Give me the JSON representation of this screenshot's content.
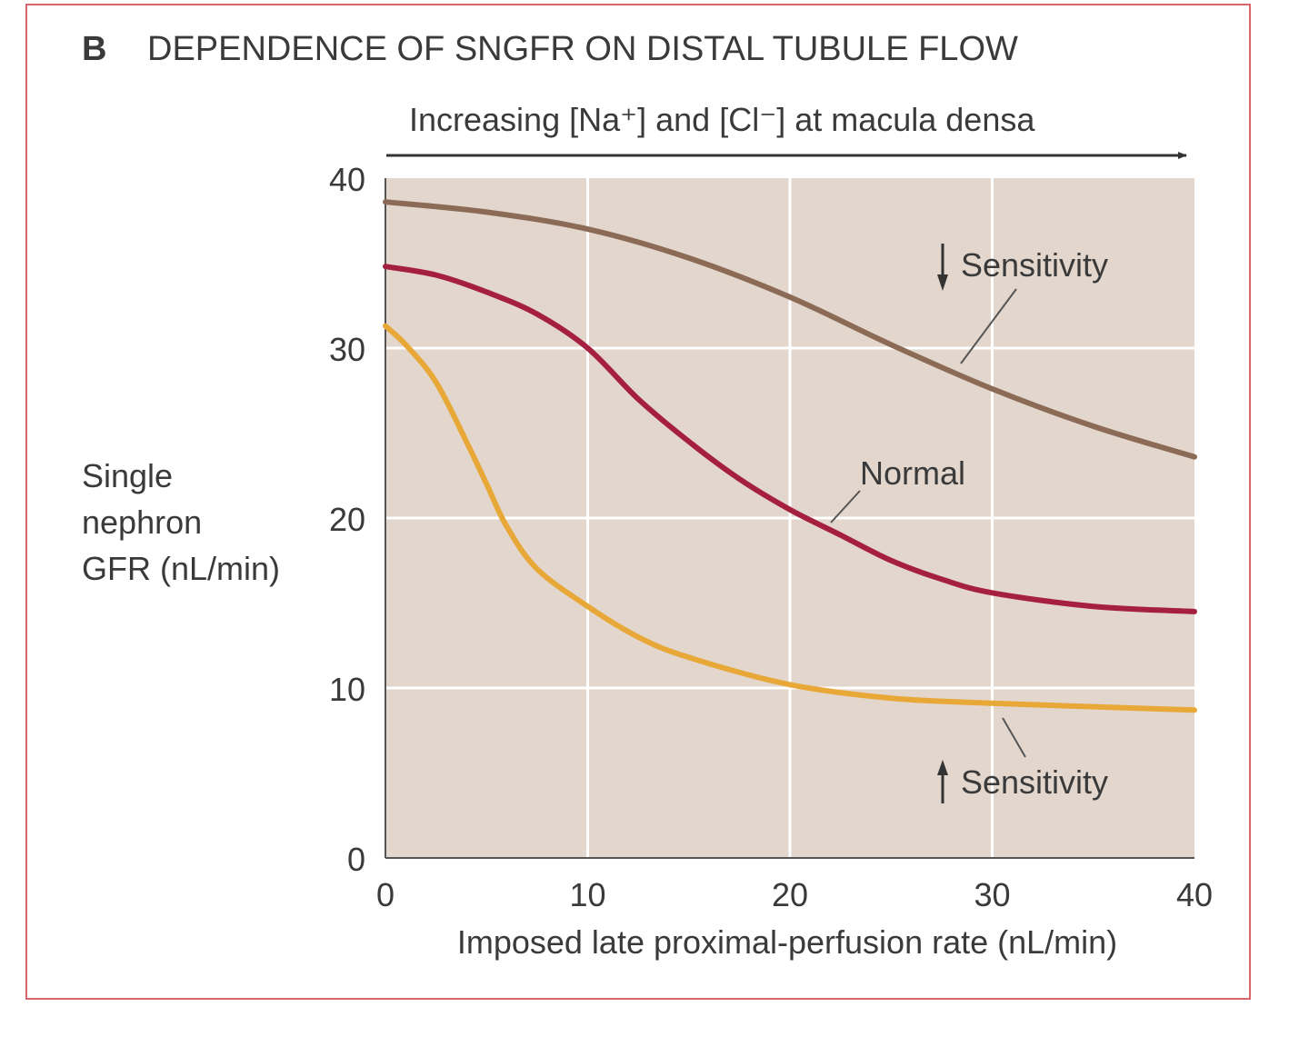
{
  "chart_data": {
    "type": "line",
    "panel_letter": "B",
    "title": "DEPENDENCE OF SNGFR ON DISTAL TUBULE FLOW",
    "top_annotation": "Increasing [Na⁺] and [Cl⁻] at macula densa",
    "xlabel": "Imposed late proximal-perfusion rate (nL/min)",
    "ylabel_lines": [
      "Single",
      "nephron",
      "GFR (nL/min)"
    ],
    "xlim": [
      0,
      40
    ],
    "ylim": [
      0,
      40
    ],
    "x_ticks": [
      0,
      10,
      20,
      30,
      40
    ],
    "y_ticks": [
      0,
      10,
      20,
      30,
      40
    ],
    "grid": true,
    "background_color": "#e2d6cd",
    "series": [
      {
        "name": "Sensitivity",
        "direction": "decreased",
        "color": "#8b6b55",
        "x": [
          0,
          5,
          10,
          15,
          20,
          25,
          30,
          35,
          40
        ],
        "y": [
          38.6,
          38.0,
          37.0,
          35.3,
          33.0,
          30.2,
          27.6,
          25.4,
          23.6
        ]
      },
      {
        "name": "Normal",
        "direction": "normal",
        "color": "#a5203f",
        "x": [
          0,
          2.5,
          5,
          7.5,
          10,
          12.5,
          15,
          17.5,
          20,
          22.5,
          25,
          27.5,
          30,
          35,
          40
        ],
        "y": [
          34.8,
          34.3,
          33.3,
          32.0,
          30.0,
          27.0,
          24.5,
          22.3,
          20.5,
          19.0,
          17.5,
          16.4,
          15.6,
          14.8,
          14.5
        ]
      },
      {
        "name": "Sensitivity",
        "direction": "increased",
        "color": "#e8a838",
        "x": [
          0,
          1,
          2.5,
          4,
          5,
          6,
          7.5,
          10,
          12.5,
          15,
          20,
          25,
          30,
          35,
          40
        ],
        "y": [
          31.3,
          30.2,
          28.0,
          24.5,
          22.0,
          19.5,
          17.0,
          14.8,
          13.0,
          11.8,
          10.2,
          9.4,
          9.1,
          8.9,
          8.7
        ]
      }
    ],
    "annotations": [
      {
        "text": "Sensitivity",
        "arrow": "down",
        "series": 0
      },
      {
        "text": "Normal",
        "arrow": "none",
        "series": 1
      },
      {
        "text": "Sensitivity",
        "arrow": "up",
        "series": 2
      }
    ]
  }
}
